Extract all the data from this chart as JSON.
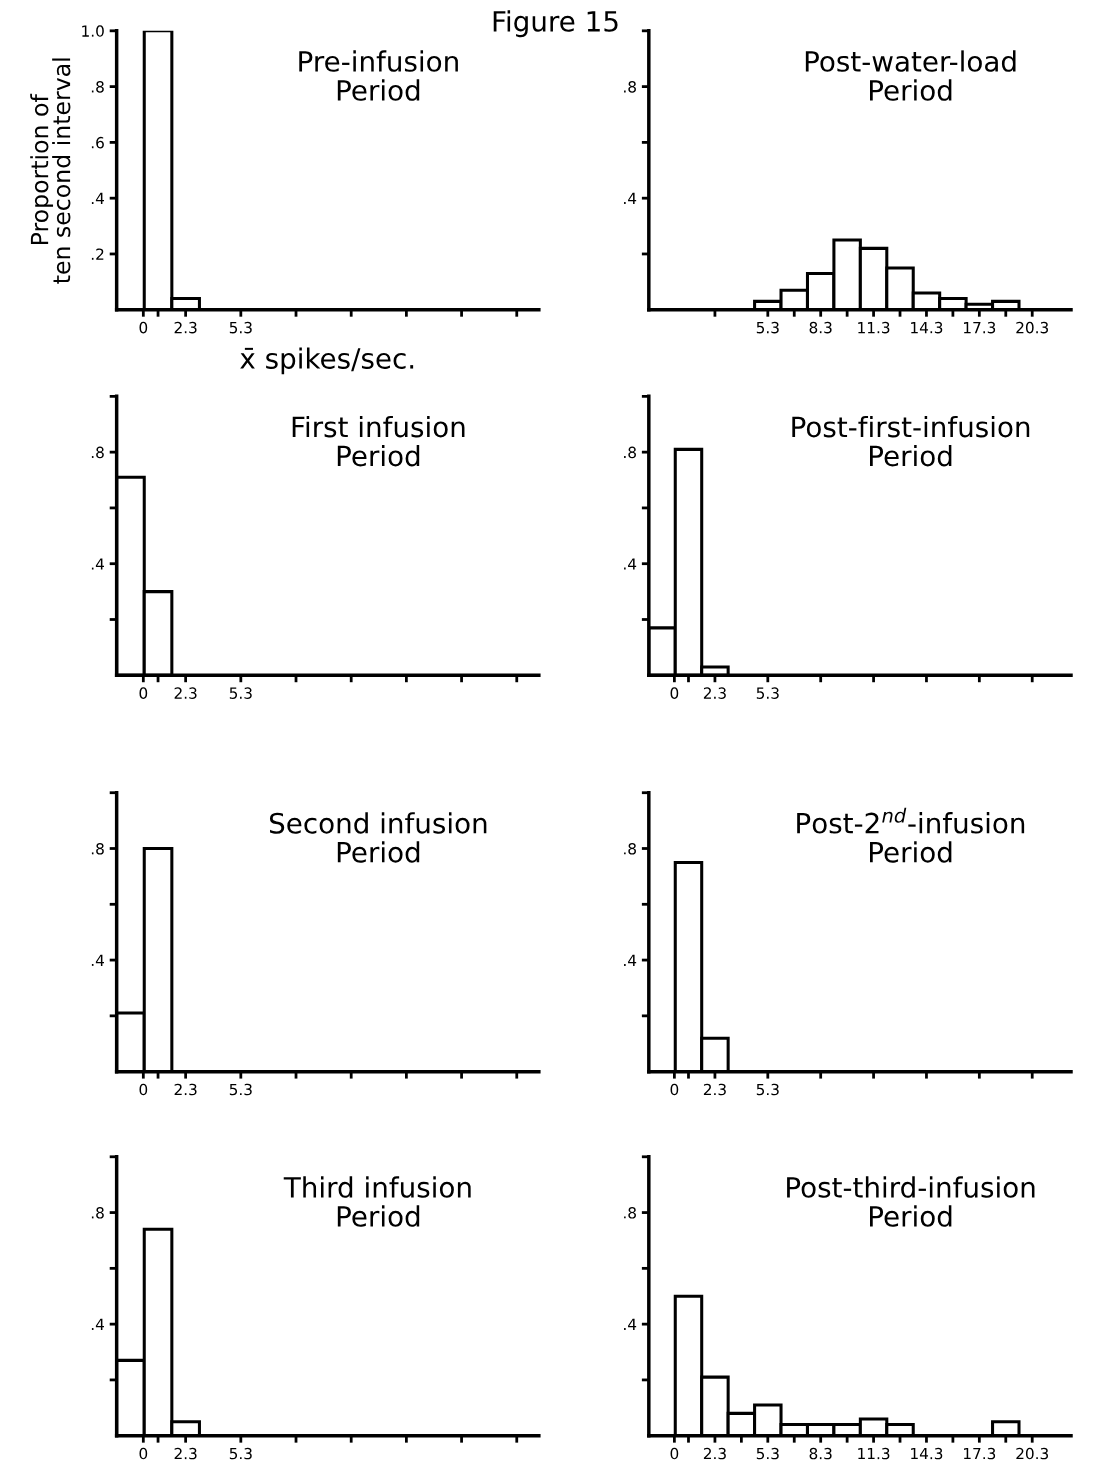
{
  "chart_data": [
    {
      "type": "histogram",
      "title": "Pre-infusion\nPeriod",
      "ylabel": "Proportion of\nten second interval",
      "xlabel": "x̄ spikes/sec.",
      "annotations": [
        "Figure 15"
      ],
      "color": "#ffffff",
      "bins": [
        -1.45,
        0.05,
        1.55,
        3.05,
        4.55,
        6.05,
        7.55,
        9.05,
        10.55,
        12.05,
        13.55,
        15.05,
        16.55,
        18.05,
        19.55,
        21.05
      ],
      "values": [
        0,
        1.0,
        0.04,
        0,
        0,
        0,
        0,
        0,
        0,
        0,
        0,
        0,
        0,
        0,
        0
      ],
      "xlim": [
        -1.45,
        21.5
      ],
      "ylim": [
        0,
        1.0
      ],
      "xticks": [
        0,
        {
          "value": 0.8,
          "label": null
        },
        2.3,
        5.3,
        {
          "value": 8.3,
          "label": null
        },
        {
          "value": 11.3,
          "label": null
        },
        {
          "value": 14.3,
          "label": null
        },
        {
          "value": 17.3,
          "label": null
        },
        {
          "value": 20.3,
          "label": null
        }
      ],
      "yticks": [
        {
          "value": 0.2,
          "label": ".2"
        },
        {
          "value": 0.4,
          "label": ".4"
        },
        {
          "value": 0.6,
          "label": ".6"
        },
        {
          "value": 0.8,
          "label": ".8"
        },
        {
          "value": 1.0,
          "label": "1.0"
        }
      ]
    },
    {
      "type": "histogram",
      "title": "Post-water-load\nPeriod",
      "color": "#ffffff",
      "bins": [
        -1.45,
        0.05,
        1.55,
        3.05,
        4.55,
        6.05,
        7.55,
        9.05,
        10.55,
        12.05,
        13.55,
        15.05,
        16.55,
        18.05,
        19.55,
        21.05
      ],
      "values": [
        0,
        0,
        0,
        0,
        0.03,
        0.07,
        0.13,
        0.25,
        0.22,
        0.15,
        0.06,
        0.04,
        0.02,
        0.03,
        0
      ],
      "xlim": [
        -1.45,
        22.5
      ],
      "ylim": [
        0,
        1.0
      ],
      "xticks": [
        {
          "value": 2.3,
          "label": null
        },
        5.3,
        {
          "value": 6.8,
          "label": null
        },
        8.3,
        {
          "value": 9.8,
          "label": null
        },
        11.3,
        {
          "value": 12.8,
          "label": null
        },
        14.3,
        {
          "value": 15.8,
          "label": null
        },
        17.3,
        {
          "value": 18.8,
          "label": null
        },
        20.3
      ],
      "yticks": [
        {
          "value": 0.2,
          "label": null
        },
        {
          "value": 0.4,
          "label": ".4"
        },
        {
          "value": 0.6,
          "label": null
        },
        {
          "value": 0.8,
          "label": ".8"
        },
        {
          "value": 1.0,
          "label": null
        }
      ]
    },
    {
      "type": "histogram",
      "title": "First infusion\nPeriod",
      "color": "#ffffff",
      "bins": [
        -1.45,
        0.05,
        1.55,
        3.05,
        4.55,
        6.05,
        7.55,
        9.05,
        10.55,
        12.05,
        13.55,
        15.05,
        16.55,
        18.05,
        19.55,
        21.05
      ],
      "values": [
        0.71,
        0.3,
        0,
        0,
        0,
        0,
        0,
        0,
        0,
        0,
        0,
        0,
        0,
        0,
        0
      ],
      "xlim": [
        -1.45,
        21.5
      ],
      "ylim": [
        0,
        1.0
      ],
      "xticks": [
        0,
        {
          "value": 0.8,
          "label": null
        },
        2.3,
        5.3,
        {
          "value": 8.3,
          "label": null
        },
        {
          "value": 11.3,
          "label": null
        },
        {
          "value": 14.3,
          "label": null
        },
        {
          "value": 17.3,
          "label": null
        },
        {
          "value": 20.3,
          "label": null
        }
      ],
      "yticks": [
        {
          "value": 0.2,
          "label": null
        },
        {
          "value": 0.4,
          "label": ".4"
        },
        {
          "value": 0.6,
          "label": null
        },
        {
          "value": 0.8,
          "label": ".8"
        },
        {
          "value": 1.0,
          "label": null
        }
      ]
    },
    {
      "type": "histogram",
      "title": "Post-first-infusion\nPeriod",
      "color": "#ffffff",
      "bins": [
        -1.45,
        0.05,
        1.55,
        3.05,
        4.55,
        6.05,
        7.55,
        9.05,
        10.55,
        12.05,
        13.55,
        15.05,
        16.55,
        18.05,
        19.55,
        21.05
      ],
      "values": [
        0.17,
        0.81,
        0.03,
        0,
        0,
        0,
        0,
        0,
        0,
        0,
        0,
        0,
        0,
        0,
        0
      ],
      "xlim": [
        -1.45,
        22.5
      ],
      "ylim": [
        0,
        1.0
      ],
      "xticks": [
        0,
        {
          "value": 0.8,
          "label": null
        },
        2.3,
        5.3,
        {
          "value": 8.3,
          "label": null
        },
        {
          "value": 11.3,
          "label": null
        },
        {
          "value": 14.3,
          "label": null
        },
        {
          "value": 17.3,
          "label": null
        },
        {
          "value": 20.3,
          "label": null
        }
      ],
      "yticks": [
        {
          "value": 0.2,
          "label": null
        },
        {
          "value": 0.4,
          "label": ".4"
        },
        {
          "value": 0.6,
          "label": null
        },
        {
          "value": 0.8,
          "label": ".8"
        },
        {
          "value": 1.0,
          "label": null
        }
      ]
    },
    {
      "type": "histogram",
      "title": "Second infusion\nPeriod",
      "color": "#ffffff",
      "bins": [
        -1.45,
        0.05,
        1.55,
        3.05,
        4.55,
        6.05,
        7.55,
        9.05,
        10.55,
        12.05,
        13.55,
        15.05,
        16.55,
        18.05,
        19.55,
        21.05
      ],
      "values": [
        0.21,
        0.8,
        0,
        0,
        0,
        0,
        0,
        0,
        0,
        0,
        0,
        0,
        0,
        0,
        0
      ],
      "xlim": [
        -1.45,
        21.5
      ],
      "ylim": [
        0,
        1.0
      ],
      "xticks": [
        0,
        {
          "value": 0.8,
          "label": null
        },
        2.3,
        5.3,
        {
          "value": 8.3,
          "label": null
        },
        {
          "value": 11.3,
          "label": null
        },
        {
          "value": 14.3,
          "label": null
        },
        {
          "value": 17.3,
          "label": null
        },
        {
          "value": 20.3,
          "label": null
        }
      ],
      "yticks": [
        {
          "value": 0.2,
          "label": null
        },
        {
          "value": 0.4,
          "label": ".4"
        },
        {
          "value": 0.6,
          "label": null
        },
        {
          "value": 0.8,
          "label": ".8"
        },
        {
          "value": 1.0,
          "label": null
        }
      ]
    },
    {
      "type": "histogram",
      "title": "Post-2$^{nd}$-infusion\nPeriod",
      "color": "#ffffff",
      "bins": [
        -1.45,
        0.05,
        1.55,
        3.05,
        4.55,
        6.05,
        7.55,
        9.05,
        10.55,
        12.05,
        13.55,
        15.05,
        16.55,
        18.05,
        19.55,
        21.05
      ],
      "values": [
        0,
        0.75,
        0.12,
        0,
        0,
        0,
        0,
        0,
        0,
        0,
        0,
        0,
        0,
        0,
        0
      ],
      "xlim": [
        -1.45,
        22.5
      ],
      "ylim": [
        0,
        1.0
      ],
      "xticks": [
        0,
        {
          "value": 0.8,
          "label": null
        },
        2.3,
        5.3,
        {
          "value": 8.3,
          "label": null
        },
        {
          "value": 11.3,
          "label": null
        },
        {
          "value": 14.3,
          "label": null
        },
        {
          "value": 17.3,
          "label": null
        },
        {
          "value": 20.3,
          "label": null
        }
      ],
      "yticks": [
        {
          "value": 0.2,
          "label": null
        },
        {
          "value": 0.4,
          "label": ".4"
        },
        {
          "value": 0.6,
          "label": null
        },
        {
          "value": 0.8,
          "label": ".8"
        },
        {
          "value": 1.0,
          "label": null
        }
      ]
    },
    {
      "type": "histogram",
      "title": "Third infusion\nPeriod",
      "color": "#ffffff",
      "bins": [
        -1.45,
        0.05,
        1.55,
        3.05,
        4.55,
        6.05,
        7.55,
        9.05,
        10.55,
        12.05,
        13.55,
        15.05,
        16.55,
        18.05,
        19.55,
        21.05
      ],
      "values": [
        0.27,
        0.74,
        0.05,
        0,
        0,
        0,
        0,
        0,
        0,
        0,
        0,
        0,
        0,
        0,
        0
      ],
      "xlim": [
        -1.45,
        21.5
      ],
      "ylim": [
        0,
        1.0
      ],
      "xticks": [
        0,
        {
          "value": 0.8,
          "label": null
        },
        2.3,
        5.3,
        {
          "value": 8.3,
          "label": null
        },
        {
          "value": 11.3,
          "label": null
        },
        {
          "value": 14.3,
          "label": null
        },
        {
          "value": 17.3,
          "label": null
        },
        {
          "value": 20.3,
          "label": null
        }
      ],
      "yticks": [
        {
          "value": 0.2,
          "label": null
        },
        {
          "value": 0.4,
          "label": ".4"
        },
        {
          "value": 0.6,
          "label": null
        },
        {
          "value": 0.8,
          "label": ".8"
        },
        {
          "value": 1.0,
          "label": null
        }
      ]
    },
    {
      "type": "histogram",
      "title": "Post-third-infusion\nPeriod",
      "color": "#ffffff",
      "bins": [
        -1.45,
        0.05,
        1.55,
        3.05,
        4.55,
        6.05,
        7.55,
        9.05,
        10.55,
        12.05,
        13.55,
        15.05,
        16.55,
        18.05,
        19.55,
        21.05
      ],
      "values": [
        0,
        0.5,
        0.21,
        0.08,
        0.11,
        0.04,
        0.04,
        0.04,
        0.06,
        0.04,
        0,
        0,
        0,
        0.05,
        0
      ],
      "xlim": [
        -1.45,
        22.5
      ],
      "ylim": [
        0,
        1.0
      ],
      "xticks": [
        0,
        {
          "value": 0.8,
          "label": null
        },
        2.3,
        {
          "value": 3.8,
          "label": null
        },
        5.3,
        {
          "value": 6.8,
          "label": null
        },
        8.3,
        {
          "value": 9.8,
          "label": null
        },
        11.3,
        {
          "value": 12.8,
          "label": null
        },
        14.3,
        {
          "value": 15.8,
          "label": null
        },
        17.3,
        {
          "value": 18.8,
          "label": null
        },
        20.3
      ],
      "yticks": [
        {
          "value": 0.2,
          "label": null
        },
        {
          "value": 0.4,
          "label": ".4"
        },
        {
          "value": 0.6,
          "label": null
        },
        {
          "value": 0.8,
          "label": ".8"
        },
        {
          "value": 1.0,
          "label": null
        }
      ]
    }
  ]
}
